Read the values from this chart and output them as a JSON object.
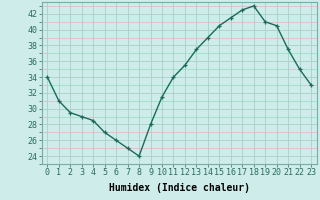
{
  "x": [
    0,
    1,
    2,
    3,
    4,
    5,
    6,
    7,
    8,
    9,
    10,
    11,
    12,
    13,
    14,
    15,
    16,
    17,
    18,
    19,
    20,
    21,
    22,
    23
  ],
  "y": [
    34,
    31,
    29.5,
    29,
    28.5,
    27,
    26,
    25,
    24,
    28,
    31.5,
    34,
    35.5,
    37.5,
    39,
    40.5,
    41.5,
    42.5,
    43,
    41,
    40.5,
    37.5,
    35,
    33
  ],
  "line_color": "#1a6b5a",
  "marker": "+",
  "marker_size": 3.5,
  "linewidth": 1.0,
  "bg_color": "#cdecea",
  "plot_bg": "#cdecea",
  "minor_grid_color": "#e0b8b8",
  "major_grid_color": "#aacfcc",
  "xlabel": "Humidex (Indice chaleur)",
  "ylim": [
    23,
    43.5
  ],
  "xlim": [
    -0.5,
    23.5
  ],
  "yticks": [
    24,
    26,
    28,
    30,
    32,
    34,
    36,
    38,
    40,
    42
  ],
  "xticks": [
    0,
    1,
    2,
    3,
    4,
    5,
    6,
    7,
    8,
    9,
    10,
    11,
    12,
    13,
    14,
    15,
    16,
    17,
    18,
    19,
    20,
    21,
    22,
    23
  ],
  "xlabel_fontsize": 7,
  "tick_fontsize": 6,
  "spine_color": "#7aada8"
}
